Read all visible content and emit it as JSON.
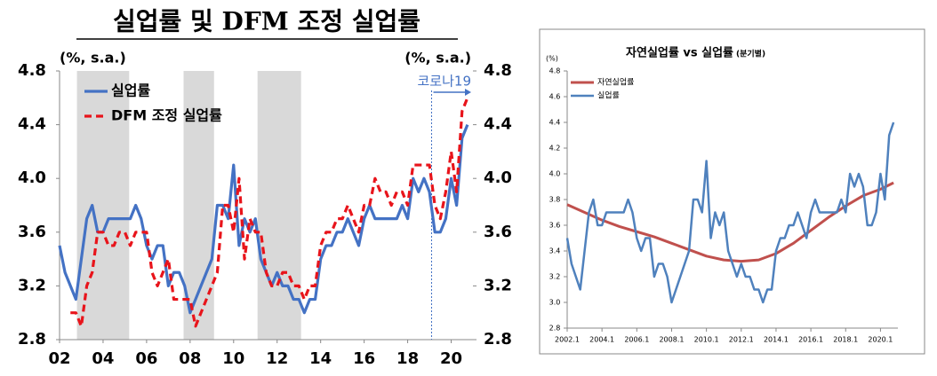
{
  "chart_data": [
    {
      "type": "line",
      "title": "실업률 및 DFM 조정 실업률",
      "y_label": "(%, s.a.)",
      "y2_label": "(%, s.a.)",
      "xlim": [
        2002,
        2021
      ],
      "xticks": [
        {
          "value": 2002,
          "label": "02"
        },
        {
          "value": 2004,
          "label": "04"
        },
        {
          "value": 2006,
          "label": "06"
        },
        {
          "value": 2008,
          "label": "08"
        },
        {
          "value": 2010,
          "label": "10"
        },
        {
          "value": 2012,
          "label": "12"
        },
        {
          "value": 2014,
          "label": "14"
        },
        {
          "value": 2016,
          "label": "16"
        },
        {
          "value": 2018,
          "label": "18"
        },
        {
          "value": 2020,
          "label": "20"
        }
      ],
      "ylim": [
        2.8,
        4.8
      ],
      "yticks": [
        2.8,
        3.2,
        3.6,
        {
          "value": 4,
          "label": "4.0"
        },
        4.4,
        4.8
      ],
      "y2lim": [
        2.8,
        4.8
      ],
      "y2ticks": [
        2.8,
        3.2,
        3.6,
        {
          "value": 4,
          "label": "4.0"
        },
        4.4,
        4.8
      ],
      "shaded_ranges": [
        [
          2002.8,
          2005.2
        ],
        [
          2007.7,
          2009.1
        ],
        [
          2011.1,
          2013.1
        ]
      ],
      "shade_color": "#d9d9d9",
      "annotation": {
        "x": 2019.1,
        "label": "코로나19",
        "color": "#4472c4"
      },
      "legend": "upper-left",
      "x": [
        2002,
        2002.25,
        2002.5,
        2002.75,
        2003,
        2003.25,
        2003.5,
        2003.75,
        2004,
        2004.25,
        2004.5,
        2004.75,
        2005,
        2005.25,
        2005.5,
        2005.75,
        2006,
        2006.25,
        2006.5,
        2006.75,
        2007,
        2007.25,
        2007.5,
        2007.75,
        2008,
        2008.25,
        2008.5,
        2008.75,
        2009,
        2009.25,
        2009.5,
        2009.75,
        2010,
        2010.25,
        2010.5,
        2010.75,
        2011,
        2011.25,
        2011.5,
        2011.75,
        2012,
        2012.25,
        2012.5,
        2012.75,
        2013,
        2013.25,
        2013.5,
        2013.75,
        2014,
        2014.25,
        2014.5,
        2014.75,
        2015,
        2015.25,
        2015.5,
        2015.75,
        2016,
        2016.25,
        2016.5,
        2016.75,
        2017,
        2017.25,
        2017.5,
        2017.75,
        2018,
        2018.25,
        2018.5,
        2018.75,
        2019,
        2019.25,
        2019.5,
        2019.75,
        2020,
        2020.25,
        2020.5,
        2020.75
      ],
      "series": [
        {
          "name": "실업률",
          "color": "#4472c4",
          "dash": false,
          "values": [
            3.5,
            3.3,
            3.2,
            3.1,
            3.4,
            3.7,
            3.8,
            3.6,
            3.6,
            3.7,
            3.7,
            3.7,
            3.7,
            3.7,
            3.8,
            3.7,
            3.5,
            3.4,
            3.5,
            3.5,
            3.2,
            3.3,
            3.3,
            3.2,
            3.0,
            3.1,
            3.2,
            3.3,
            3.4,
            3.8,
            3.8,
            3.7,
            4.1,
            3.5,
            3.7,
            3.6,
            3.7,
            3.4,
            3.3,
            3.2,
            3.3,
            3.2,
            3.2,
            3.1,
            3.1,
            3.0,
            3.1,
            3.1,
            3.4,
            3.5,
            3.5,
            3.6,
            3.6,
            3.7,
            3.6,
            3.5,
            3.7,
            3.8,
            3.7,
            3.7,
            3.7,
            3.7,
            3.7,
            3.8,
            3.7,
            4.0,
            3.9,
            4.0,
            3.9,
            3.6,
            3.6,
            3.7,
            4.0,
            3.8,
            4.3,
            4.4
          ]
        },
        {
          "name": "DFM 조정 실업률",
          "color": "#e8141b",
          "dash": true,
          "values": [
            null,
            null,
            3.0,
            3.0,
            2.9,
            3.2,
            3.3,
            3.6,
            3.6,
            3.5,
            3.5,
            3.6,
            3.6,
            3.5,
            3.6,
            3.6,
            3.6,
            3.3,
            3.2,
            3.3,
            3.4,
            3.1,
            3.1,
            3.1,
            3.1,
            2.9,
            3.0,
            3.1,
            3.2,
            3.3,
            3.8,
            3.8,
            3.6,
            4.0,
            3.4,
            3.7,
            3.6,
            3.6,
            3.3,
            3.2,
            3.2,
            3.3,
            3.3,
            3.2,
            3.2,
            3.1,
            3.2,
            3.2,
            3.5,
            3.6,
            3.6,
            3.7,
            3.7,
            3.8,
            3.7,
            3.6,
            3.8,
            3.8,
            4.0,
            3.9,
            3.9,
            3.8,
            3.9,
            3.9,
            3.8,
            4.1,
            4.1,
            4.1,
            4.1,
            3.8,
            3.7,
            3.9,
            4.2,
            3.9,
            4.5,
            4.6
          ]
        }
      ]
    },
    {
      "type": "line",
      "title": "자연실업률 vs 실업률",
      "subtitle": "(분기별)",
      "y_label": "(%)",
      "xlim": [
        2002,
        2021
      ],
      "xticks": [
        {
          "value": 2002,
          "label": "2002.1"
        },
        {
          "value": 2004,
          "label": "2004.1"
        },
        {
          "value": 2006,
          "label": "2006.1"
        },
        {
          "value": 2008,
          "label": "2008.1"
        },
        {
          "value": 2010,
          "label": "2010.1"
        },
        {
          "value": 2012,
          "label": "2012.1"
        },
        {
          "value": 2014,
          "label": "2014.1"
        },
        {
          "value": 2016,
          "label": "2016.1"
        },
        {
          "value": 2018,
          "label": "2018.1"
        },
        {
          "value": 2020,
          "label": "2020.1"
        }
      ],
      "ylim": [
        2.8,
        4.8
      ],
      "yticks": [
        2.8,
        {
          "value": 3,
          "label": "3.0"
        },
        3.2,
        3.4,
        3.6,
        3.8,
        {
          "value": 4,
          "label": "4.0"
        },
        4.2,
        4.4,
        4.6,
        4.8
      ],
      "legend": "upper-left",
      "x": [
        2002,
        2002.25,
        2002.5,
        2002.75,
        2003,
        2003.25,
        2003.5,
        2003.75,
        2004,
        2004.25,
        2004.5,
        2004.75,
        2005,
        2005.25,
        2005.5,
        2005.75,
        2006,
        2006.25,
        2006.5,
        2006.75,
        2007,
        2007.25,
        2007.5,
        2007.75,
        2008,
        2008.25,
        2008.5,
        2008.75,
        2009,
        2009.25,
        2009.5,
        2009.75,
        2010,
        2010.25,
        2010.5,
        2010.75,
        2011,
        2011.25,
        2011.5,
        2011.75,
        2012,
        2012.25,
        2012.5,
        2012.75,
        2013,
        2013.25,
        2013.5,
        2013.75,
        2014,
        2014.25,
        2014.5,
        2014.75,
        2015,
        2015.25,
        2015.5,
        2015.75,
        2016,
        2016.25,
        2016.5,
        2016.75,
        2017,
        2017.25,
        2017.5,
        2017.75,
        2018,
        2018.25,
        2018.5,
        2018.75,
        2019,
        2019.25,
        2019.5,
        2019.75,
        2020,
        2020.25,
        2020.5,
        2020.75
      ],
      "series": [
        {
          "name": "자연실업률",
          "color": "#c0504d",
          "width": 3,
          "x": [
            2002,
            2003,
            2004,
            2005,
            2006,
            2007,
            2008,
            2009,
            2010,
            2011,
            2012,
            2013,
            2014,
            2015,
            2016,
            2017,
            2018,
            2019,
            2020,
            2020.75
          ],
          "values": [
            3.76,
            3.7,
            3.64,
            3.59,
            3.55,
            3.51,
            3.46,
            3.41,
            3.36,
            3.33,
            3.32,
            3.33,
            3.38,
            3.46,
            3.56,
            3.66,
            3.75,
            3.83,
            3.88,
            3.93
          ]
        },
        {
          "name": "실업률",
          "color": "#4f81bd",
          "width": 2.5,
          "values": [
            3.5,
            3.3,
            3.2,
            3.1,
            3.4,
            3.7,
            3.8,
            3.6,
            3.6,
            3.7,
            3.7,
            3.7,
            3.7,
            3.7,
            3.8,
            3.7,
            3.5,
            3.4,
            3.5,
            3.5,
            3.2,
            3.3,
            3.3,
            3.2,
            3.0,
            3.1,
            3.2,
            3.3,
            3.4,
            3.8,
            3.8,
            3.7,
            4.1,
            3.5,
            3.7,
            3.6,
            3.7,
            3.4,
            3.3,
            3.2,
            3.3,
            3.2,
            3.2,
            3.1,
            3.1,
            3.0,
            3.1,
            3.1,
            3.4,
            3.5,
            3.5,
            3.6,
            3.6,
            3.7,
            3.6,
            3.5,
            3.7,
            3.8,
            3.7,
            3.7,
            3.7,
            3.7,
            3.7,
            3.8,
            3.7,
            4.0,
            3.9,
            4.0,
            3.9,
            3.6,
            3.6,
            3.7,
            4.0,
            3.8,
            4.3,
            4.4
          ]
        }
      ]
    }
  ]
}
